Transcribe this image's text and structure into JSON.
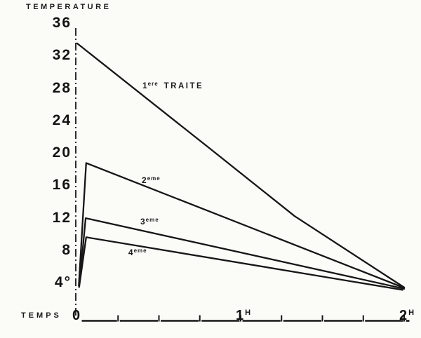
{
  "page": {
    "background": "#fbfbf8",
    "ink": "#161616"
  },
  "chart_data": {
    "type": "line",
    "title": "",
    "ylabel": "TEMPERATURE",
    "xlabel": "TEMPS",
    "x_unit": "H",
    "xlim": [
      0,
      2.05
    ],
    "ylim": [
      0,
      37
    ],
    "grid": false,
    "legend_position": "inline-labels",
    "y_ticks": [
      {
        "value": 36,
        "label": "36"
      },
      {
        "value": 32,
        "label": "32"
      },
      {
        "value": 28,
        "label": "28"
      },
      {
        "value": 24,
        "label": "24"
      },
      {
        "value": 20,
        "label": "20"
      },
      {
        "value": 16,
        "label": "16"
      },
      {
        "value": 12,
        "label": "12"
      },
      {
        "value": 8,
        "label": "8"
      },
      {
        "value": 4,
        "label": "4°"
      }
    ],
    "x_ticks": [
      {
        "value": 0,
        "label": "0",
        "sup": ""
      },
      {
        "value": 1,
        "label": "1",
        "sup": "H"
      },
      {
        "value": 2,
        "label": "2",
        "sup": "H"
      }
    ],
    "x_minor_tick_start": 0.25,
    "x_minor_tick_step": 0.25,
    "x_minor_tick_end": 2.0,
    "series": [
      {
        "name_base": "1",
        "name_sup": "ere",
        "name_rest": "TRAITE",
        "points": [
          [
            0,
            33.5
          ],
          [
            0.82,
            20.4
          ],
          [
            1.33,
            12.2
          ],
          [
            2.0,
            3.4
          ]
        ],
        "label_anchor": [
          0.399,
          28.9
        ]
      },
      {
        "name_base": "2",
        "name_sup": "eme",
        "name_rest": "",
        "points": [
          [
            0.01,
            3.6
          ],
          [
            0.055,
            18.75
          ],
          [
            2.0,
            3.35
          ]
        ],
        "label_anchor": [
          0.395,
          17.23
        ]
      },
      {
        "name_base": "3",
        "name_sup": "eme",
        "name_rest": "",
        "points": [
          [
            0.012,
            3.55
          ],
          [
            0.052,
            11.95
          ],
          [
            2.0,
            3.25
          ]
        ],
        "label_anchor": [
          0.386,
          12.13
        ]
      },
      {
        "name_base": "4",
        "name_sup": "eme",
        "name_rest": "",
        "points": [
          [
            0.012,
            3.45
          ],
          [
            0.055,
            9.6
          ],
          [
            1.99,
            3.1
          ]
        ],
        "label_anchor": [
          0.313,
          8.32
        ]
      }
    ]
  }
}
